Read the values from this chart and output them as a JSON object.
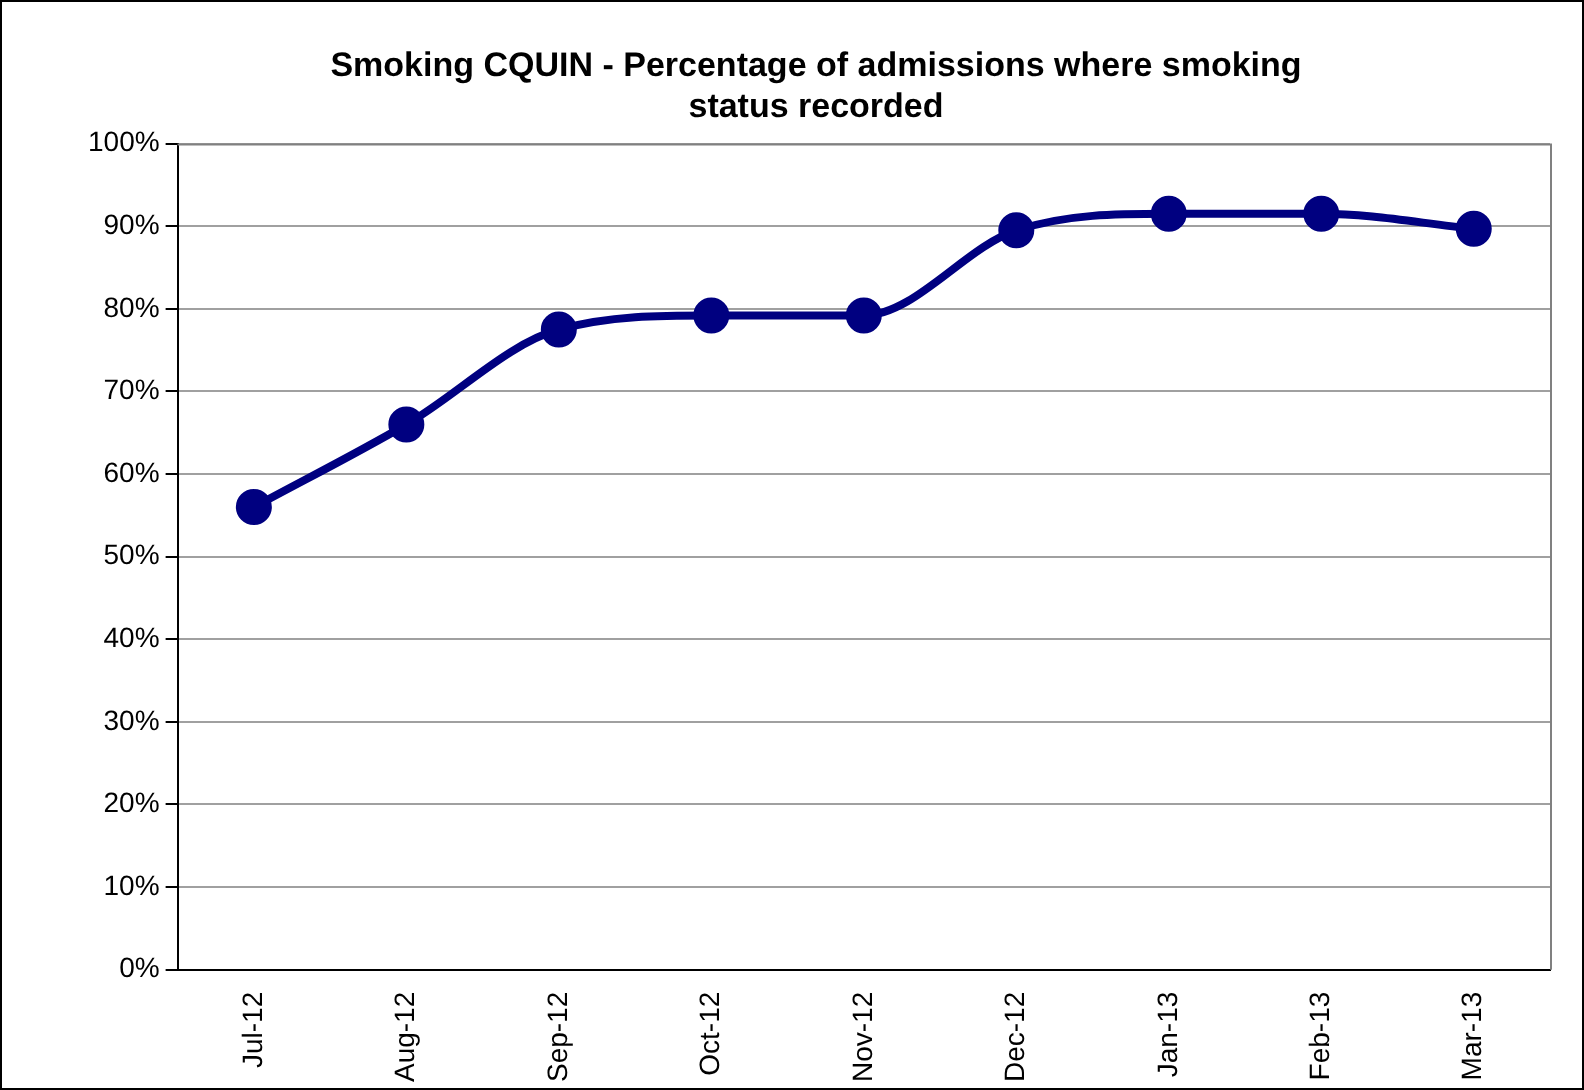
{
  "chart_data": {
    "type": "line",
    "title": [
      "Smoking CQUIN - Percentage of admissions where smoking",
      "status recorded"
    ],
    "categories": [
      "Jul-12",
      "Aug-12",
      "Sep-12",
      "Oct-12",
      "Nov-12",
      "Dec-12",
      "Jan-13",
      "Feb-13",
      "Mar-13"
    ],
    "series": [
      {
        "color": "#000080",
        "values": [
          56,
          66,
          77.5,
          79.2,
          79.2,
          89.5,
          91.5,
          91.5,
          89.7
        ]
      }
    ],
    "ylim": [
      0,
      100
    ],
    "yticks": [
      {
        "value": 0,
        "label": "0%"
      },
      {
        "value": 10,
        "label": "10%"
      },
      {
        "value": 20,
        "label": "20%"
      },
      {
        "value": 30,
        "label": "30%"
      },
      {
        "value": 40,
        "label": "40%"
      },
      {
        "value": 50,
        "label": "50%"
      },
      {
        "value": 60,
        "label": "60%"
      },
      {
        "value": 70,
        "label": "70%"
      },
      {
        "value": 80,
        "label": "80%"
      },
      {
        "value": 90,
        "label": "90%"
      },
      {
        "value": 100,
        "label": "100%"
      }
    ],
    "grid": "y",
    "legend": false,
    "marker": "circle",
    "line_style": "solid"
  }
}
